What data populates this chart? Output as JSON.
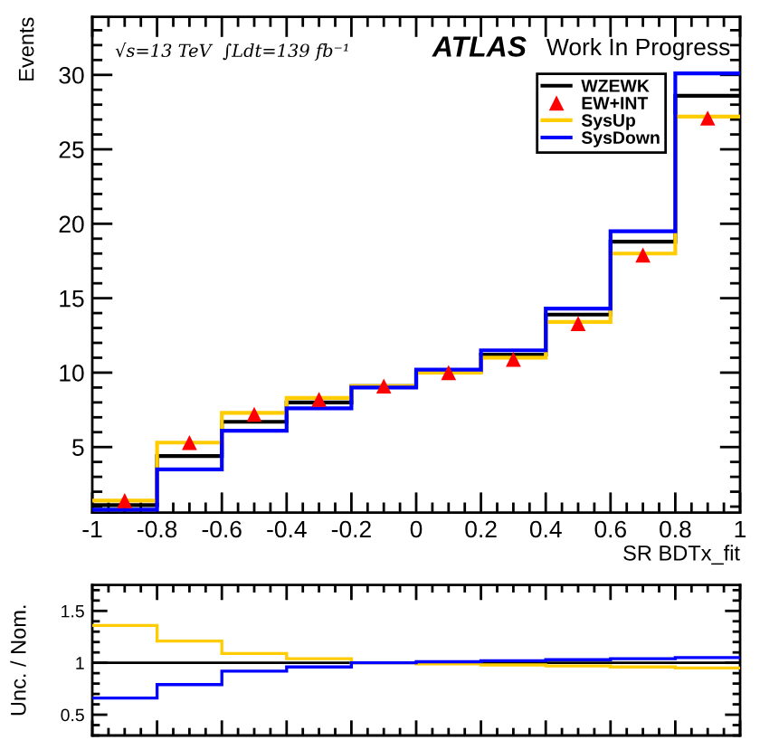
{
  "chart_data": [
    {
      "type": "histogram",
      "bins": [
        -1,
        -0.8,
        -0.6,
        -0.4,
        -0.2,
        0,
        0.2,
        0.4,
        0.6,
        0.8,
        1
      ],
      "series": [
        {
          "name": "WZEWK",
          "color": "#000000",
          "values": [
            1.1,
            4.4,
            6.7,
            8.0,
            9.1,
            10.1,
            11.2,
            13.9,
            18.8,
            28.6
          ]
        },
        {
          "name": "EW+INT",
          "type": "scatter",
          "marker": "triangle",
          "color": "#ff0000",
          "x": [
            -0.9,
            -0.7,
            -0.5,
            -0.3,
            -0.1,
            0.1,
            0.3,
            0.5,
            0.7,
            0.9
          ],
          "values": [
            1.4,
            5.3,
            7.2,
            8.2,
            9.1,
            10.0,
            10.9,
            13.3,
            17.9,
            27.1
          ]
        },
        {
          "name": "SysUp",
          "color": "#ffcc00",
          "values": [
            1.4,
            5.3,
            7.3,
            8.3,
            9.1,
            10.0,
            11.0,
            13.4,
            18.0,
            27.2
          ]
        },
        {
          "name": "SysDown",
          "color": "#0000ff",
          "values": [
            0.8,
            3.5,
            6.1,
            7.6,
            9.0,
            10.2,
            11.5,
            14.3,
            19.5,
            30.1
          ]
        }
      ],
      "xlabel": "SR BDTx_fit",
      "ylabel": "Events",
      "xlim": [
        -1,
        1
      ],
      "xticks": [
        -1,
        -0.8,
        -0.6,
        -0.4,
        -0.2,
        0,
        0.2,
        0.4,
        0.6,
        0.8,
        1
      ],
      "ylim": [
        0.6,
        33.9
      ],
      "yticks": [
        5,
        10,
        15,
        20,
        25,
        30
      ],
      "legend": "top right",
      "annotations": [
        "ATLAS",
        "Work In Progress",
        "√s=13 TeV  ∫Ldt=139 fb⁻¹"
      ]
    },
    {
      "type": "histogram",
      "bins": [
        -1,
        -0.8,
        -0.6,
        -0.4,
        -0.2,
        0,
        0.2,
        0.4,
        0.6,
        0.8,
        1
      ],
      "series": [
        {
          "color": "#ffcc00",
          "values": [
            1.36,
            1.21,
            1.09,
            1.04,
            1.0,
            0.99,
            0.98,
            0.97,
            0.96,
            0.95
          ]
        },
        {
          "color": "#0000ff",
          "values": [
            0.66,
            0.79,
            0.92,
            0.96,
            1.0,
            1.01,
            1.02,
            1.03,
            1.04,
            1.05
          ]
        }
      ],
      "ylabel": "Unc. / Nom.",
      "xlim": [
        -1,
        1
      ],
      "xticks": [
        -1,
        -0.8,
        -0.6,
        -0.4,
        -0.2,
        0,
        0.2,
        0.4,
        0.6,
        0.8,
        1
      ],
      "ylim": [
        0.3,
        1.75
      ],
      "yticks": [
        0.5,
        1,
        1.5
      ],
      "ref_lines": [
        {
          "axis": "y",
          "value": 1,
          "color": "#000000"
        }
      ],
      "tick_labels": "y"
    }
  ]
}
